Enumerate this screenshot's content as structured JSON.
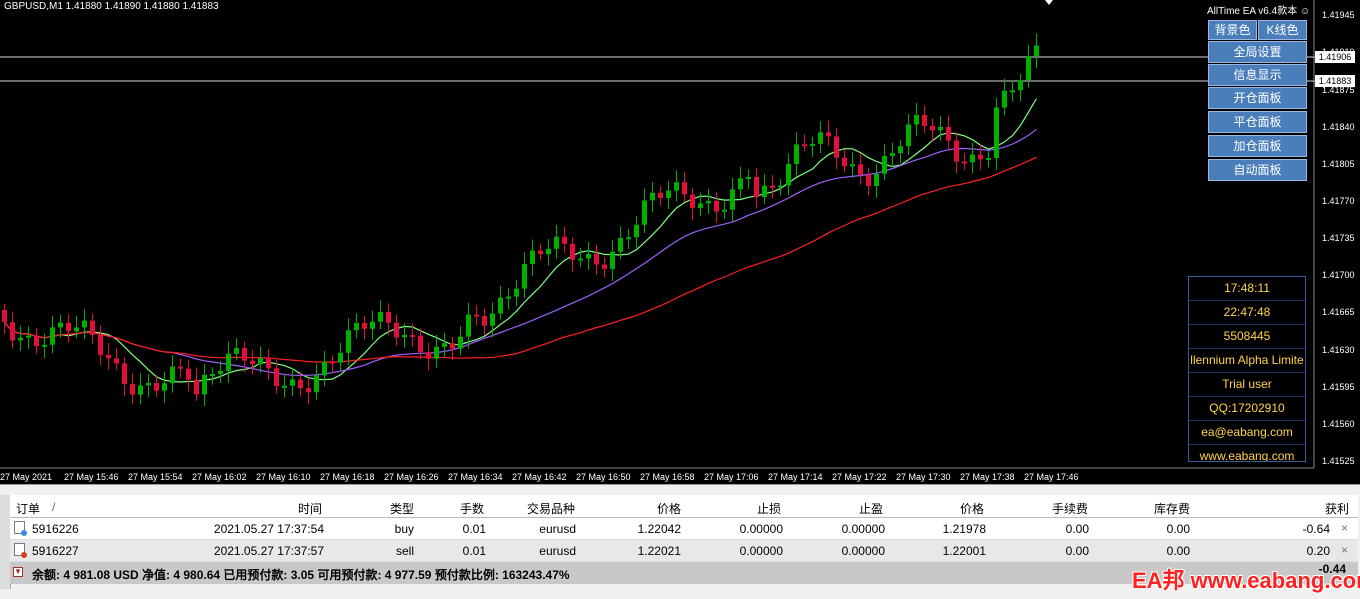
{
  "symbol_label": "GBPUSD,M1  1.41880 1.41890 1.41880 1.41883",
  "ea_title": "AllTime EA  v6.4款本 ☺",
  "top_buttons": [
    "背景色",
    "K线色"
  ],
  "panel_buttons": [
    "全局设置",
    "信息显示",
    "开仓面板",
    "平仓面板",
    "加仓面板",
    "自动面板"
  ],
  "info_box": [
    "17:48:11",
    "22:47:48",
    "5508445",
    "llennium Alpha Limite",
    "Trial user",
    "QQ:17202910",
    "ea@eabang.com",
    "www.eabang.com"
  ],
  "price_axis": [
    "1.41945",
    "1.41910",
    "1.41875",
    "1.41840",
    "1.41805",
    "1.41770",
    "1.41735",
    "1.41700",
    "1.41665",
    "1.41630",
    "1.41595",
    "1.41560",
    "1.41525"
  ],
  "price_tags": {
    "level": "1.41906",
    "bid": "1.41883"
  },
  "time_axis": [
    "27 May 2021",
    "27 May 15:46",
    "27 May 15:54",
    "27 May 16:02",
    "27 May 16:10",
    "27 May 16:18",
    "27 May 16:26",
    "27 May 16:34",
    "27 May 16:42",
    "27 May 16:50",
    "27 May 16:58",
    "27 May 17:06",
    "27 May 17:14",
    "27 May 17:22",
    "27 May 17:30",
    "27 May 17:38",
    "27 May 17:46"
  ],
  "colors": {
    "bull": "#00b000",
    "bear": "#e0103a",
    "ma_fast": "#80ff80",
    "ma_mid": "#9f5fff",
    "ma_slow": "#ff2020",
    "panel": "#4a7ebb"
  },
  "terminal": {
    "headers": [
      "订单",
      "/",
      "时间",
      "类型",
      "手数",
      "交易品种",
      "价格",
      "止损",
      "止盈",
      "价格",
      "手续费",
      "库存费",
      "获利"
    ],
    "rows": [
      {
        "order": "5916226",
        "time": "2021.05.27 17:37:54",
        "type": "buy",
        "lots": "0.01",
        "symbol": "eurusd",
        "price": "1.22042",
        "sl": "0.00000",
        "tp": "0.00000",
        "cur_price": "1.21978",
        "commission": "0.00",
        "swap": "0.00",
        "profit": "-0.64",
        "close": "×"
      },
      {
        "order": "5916227",
        "time": "2021.05.27 17:37:57",
        "type": "sell",
        "lots": "0.01",
        "symbol": "eurusd",
        "price": "1.22021",
        "sl": "0.00000",
        "tp": "0.00000",
        "cur_price": "1.22001",
        "commission": "0.00",
        "swap": "0.00",
        "profit": "0.20",
        "close": "×"
      }
    ],
    "balance_line": "余额: 4 981.08 USD   净值: 4 980.64   已用预付款: 3.05   可用预付款: 4 977.59   预付款比例: 163243.47%",
    "total_profit": "-0.44"
  },
  "watermark": "EA邦 www.eabang.com"
}
